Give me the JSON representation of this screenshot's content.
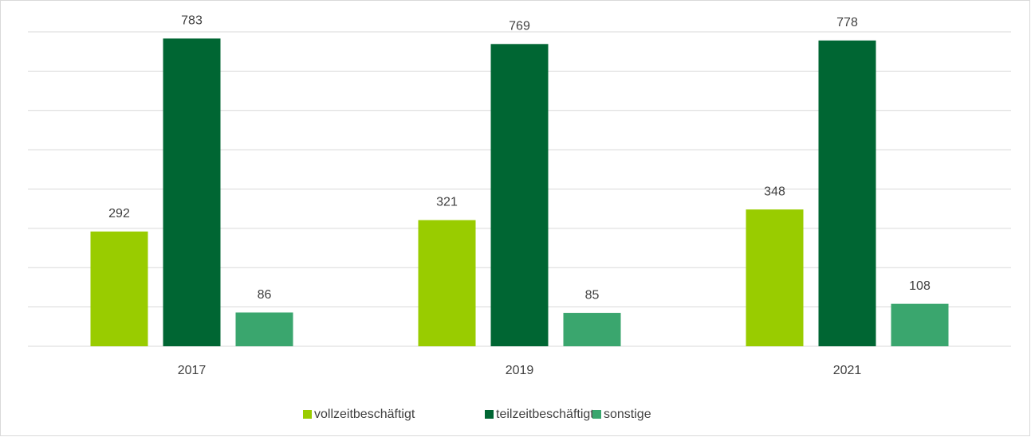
{
  "chart_data": {
    "type": "bar",
    "categories": [
      "2017",
      "2019",
      "2021"
    ],
    "series": [
      {
        "name": "vollzeitbeschäftigt",
        "color": "#99cc00",
        "values": [
          292,
          321,
          348
        ]
      },
      {
        "name": "teilzeitbeschäftigt",
        "color": "#006633",
        "values": [
          783,
          769,
          778
        ]
      },
      {
        "name": "sonstige",
        "color": "#3aa66e",
        "values": [
          86,
          85,
          108
        ]
      }
    ],
    "ylim": [
      0,
      800
    ],
    "yticks": [
      0,
      100,
      200,
      300,
      400,
      500,
      600,
      700,
      800
    ],
    "grid": true,
    "legend": "bottom"
  }
}
